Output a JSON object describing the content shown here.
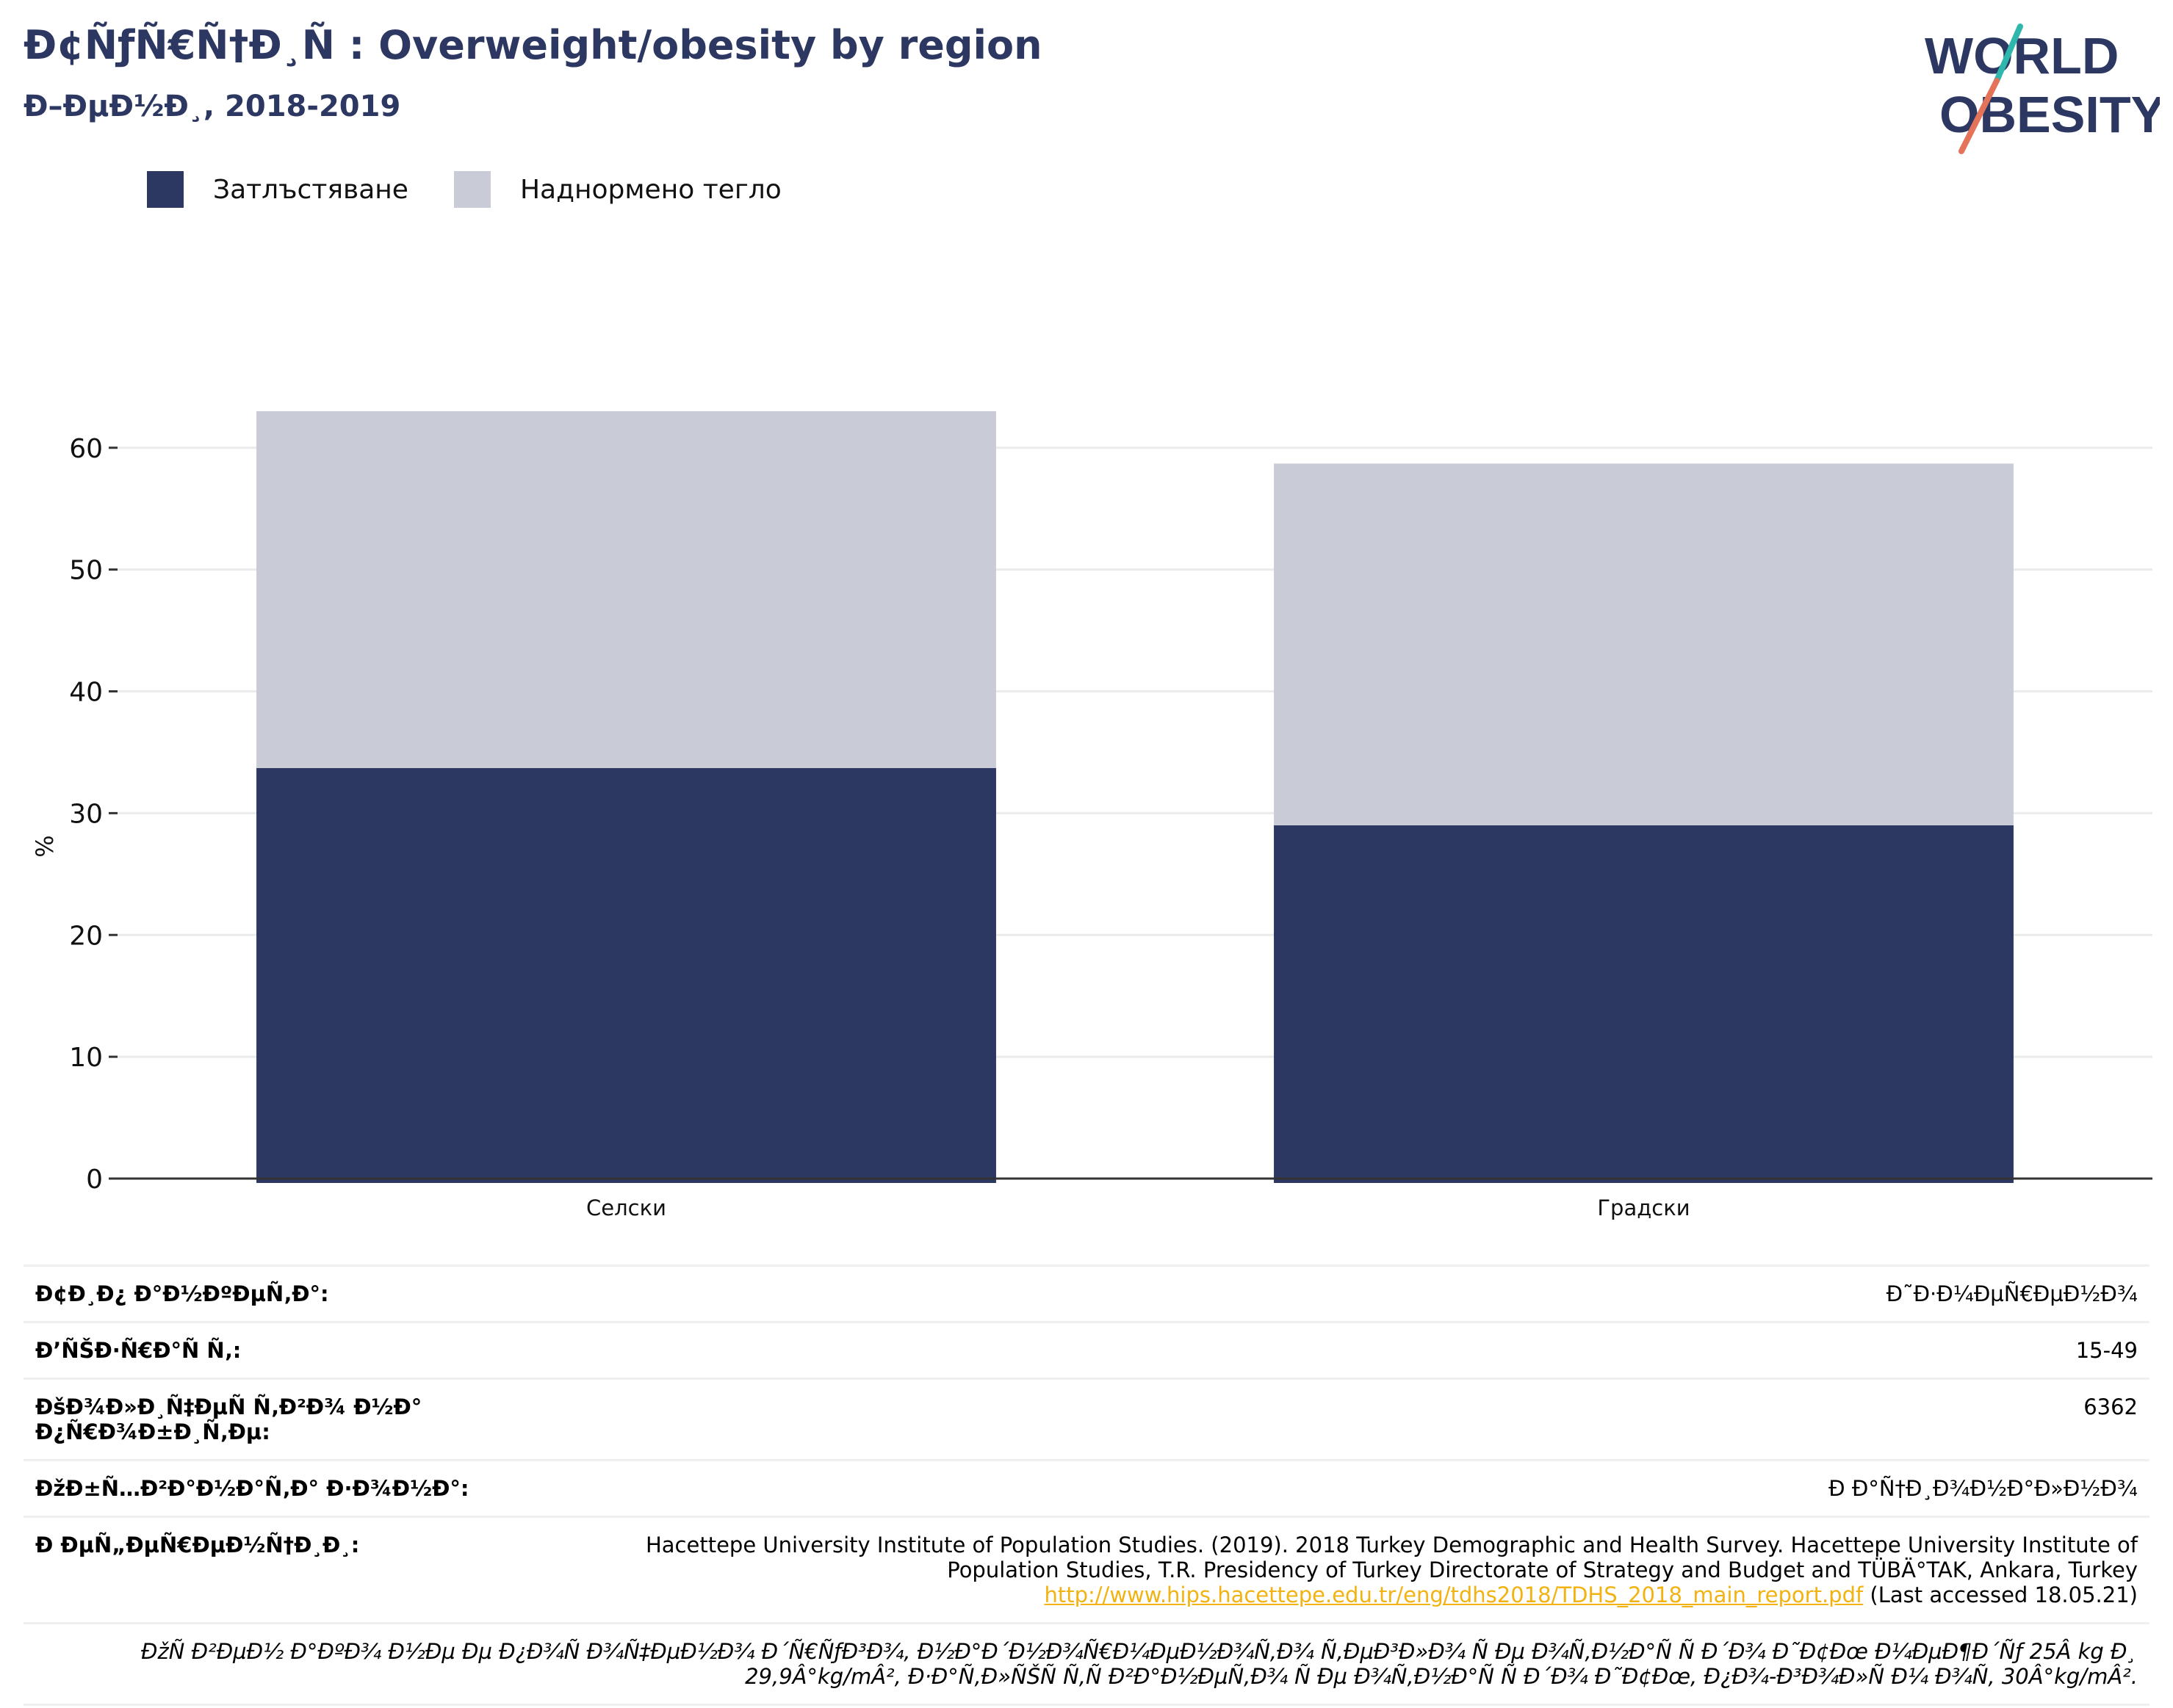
{
  "header": {
    "title": "Ð¢ÑƒÑ€Ñ†Ð¸Ñ : Overweight/obesity by region",
    "subtitle": "Ð–ÐµÐ½Ð¸, 2018-2019"
  },
  "logo": {
    "line1": "WORLD",
    "line2": "OBESITY",
    "accent_teal": "#2fb7ad",
    "accent_orange": "#e5735a",
    "text_color": "#2c3762"
  },
  "legend": [
    {
      "label": "Затлъстяване",
      "color": "#2c3762"
    },
    {
      "label": "Наднормено тегло",
      "color": "#c9cbd6"
    }
  ],
  "chart_data": {
    "type": "bar",
    "stacked": true,
    "categories": [
      "Селски",
      "Градски"
    ],
    "series": [
      {
        "name": "Затлъстяване",
        "values": [
          33.7,
          29.0
        ],
        "color": "#2c3762"
      },
      {
        "name": "Наднормено тегло",
        "values": [
          29.3,
          29.7
        ],
        "color": "#c9cbd6"
      }
    ],
    "ylabel": "%",
    "yticks": [
      0,
      10,
      20,
      30,
      40,
      50,
      60
    ],
    "ylim": [
      0,
      63
    ],
    "grid": true,
    "legend_position": "top-left"
  },
  "info": {
    "rows": [
      {
        "key": "Ð¢Ð¸Ð¿ Ð°Ð½ÐºÐµÑ‚Ð°:",
        "value": "Ð˜Ð·Ð¼ÐµÑ€ÐµÐ½Ð¾"
      },
      {
        "key": "Ð’ÑŠÐ·Ñ€Ð°Ñ Ñ‚:",
        "value": "15-49"
      },
      {
        "key": "ÐšÐ¾Ð»Ð¸Ñ‡ÐµÑ Ñ‚Ð²Ð¾ Ð½Ð° Ð¿Ñ€Ð¾Ð±Ð¸Ñ‚Ðµ:",
        "value": "6362"
      },
      {
        "key": "ÐžÐ±Ñ…Ð²Ð°Ð½Ð°Ñ‚Ð° Ð·Ð¾Ð½Ð°:",
        "value": "Ð Ð°Ñ†Ð¸Ð¾Ð½Ð°Ð»Ð½Ð¾"
      }
    ],
    "source_key": "Ð ÐµÑ„ÐµÑ€ÐµÐ½Ñ†Ð¸Ð¸:",
    "source_text": "Hacettepe University Institute of Population Studies. (2019). 2018 Turkey Demographic and Health Survey. Hacettepe University Institute of Population Studies, T.R. Presidency of Turkey Directorate of Strategy and Budget and TÜBÄ°TAK, Ankara, Turkey",
    "source_link": "http://www.hips.hacettepe.edu.tr/eng/tdhs2018/TDHS_2018_main_report.pdf",
    "source_accessed": "(Last accessed 18.05.21)",
    "note": "ÐžÑ Ð²ÐµÐ½ Ð°ÐºÐ¾ Ð½Ðµ Ðµ Ð¿Ð¾Ñ Ð¾Ñ‡ÐµÐ½Ð¾ Ð´Ñ€ÑƒÐ³Ð¾, Ð½Ð°Ð´Ð½Ð¾Ñ€Ð¼ÐµÐ½Ð¾Ñ‚Ð¾ Ñ‚ÐµÐ³Ð»Ð¾ Ñ Ðµ Ð¾Ñ‚Ð½Ð°Ñ Ñ  Ð´Ð¾ Ð˜Ð¢Ðœ Ð¼ÐµÐ¶Ð´Ñƒ 25Â kg Ð¸ 29,9Â°kg/mÂ², Ð·Ð°Ñ‚Ð»ÑŠÑ Ñ‚Ñ Ð²Ð°Ð½ÐµÑ‚Ð¾ Ñ Ðµ Ð¾Ñ‚Ð½Ð°Ñ Ñ  Ð´Ð¾ Ð˜Ð¢Ðœ, Ð¿Ð¾-Ð³Ð¾Ð»Ñ Ð¼ Ð¾Ñ‚ 30Â°kg/mÂ²."
  }
}
